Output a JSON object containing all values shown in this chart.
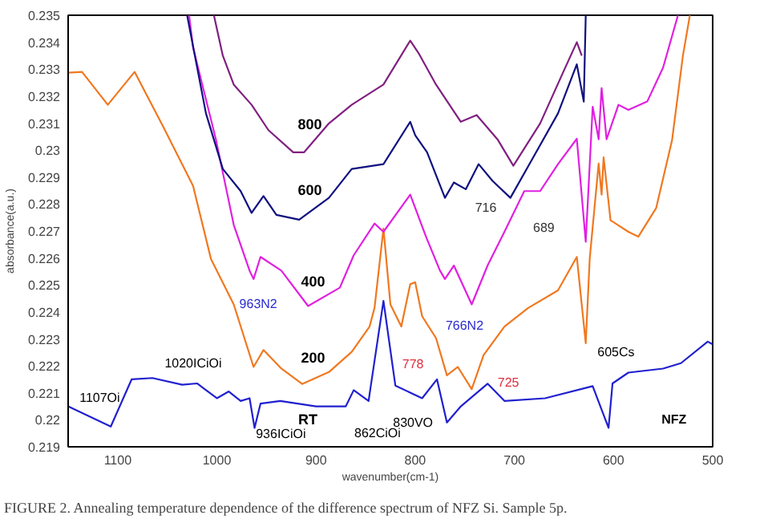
{
  "chart_data": {
    "type": "line",
    "xlabel": "wavenumber(cm-1)",
    "ylabel": "absorbance(a.u.)",
    "xlim": [
      1150,
      500
    ],
    "ylim": [
      0.219,
      0.235
    ],
    "xticks": [
      1100,
      1000,
      900,
      800,
      700,
      600,
      500
    ],
    "yticks": [
      0.219,
      0.22,
      0.221,
      0.222,
      0.223,
      0.224,
      0.225,
      0.226,
      0.227,
      0.228,
      0.229,
      0.23,
      0.231,
      0.232,
      0.233,
      0.234,
      0.235
    ],
    "grid": false,
    "line_style": "solid",
    "series": [
      {
        "name": "RT",
        "color": "#2020d0",
        "x": [
          1150,
          1107,
          1086,
          1065,
          1035,
          1020,
          1000,
          988,
          976,
          967,
          962,
          956,
          936,
          900,
          870,
          862,
          847,
          846,
          832,
          820,
          793,
          778,
          768,
          754,
          727,
          710,
          669,
          621,
          605,
          601,
          585,
          550,
          532,
          505,
          500
        ],
        "values": [
          0.2205,
          0.21975,
          0.2215,
          0.22155,
          0.2213,
          0.22135,
          0.2208,
          0.22105,
          0.2207,
          0.2208,
          0.2197,
          0.2206,
          0.2207,
          0.2205,
          0.2205,
          0.2211,
          0.2207,
          0.22095,
          0.22441,
          0.22127,
          0.2208,
          0.2215,
          0.2199,
          0.2205,
          0.22134,
          0.2207,
          0.2208,
          0.22125,
          0.2197,
          0.22135,
          0.22175,
          0.2219,
          0.2221,
          0.2229,
          0.2228
        ]
      },
      {
        "name": "200",
        "color": "#f07820",
        "x": [
          1150,
          1136,
          1110,
          1083,
          1054,
          1024,
          1006,
          983,
          963,
          953,
          935,
          914,
          887,
          864,
          846,
          841,
          832,
          825,
          814,
          805,
          800,
          793,
          779,
          768,
          757,
          743,
          731,
          710,
          686,
          656,
          637,
          628,
          624,
          615,
          612,
          610,
          603,
          585,
          575,
          557,
          541,
          530,
          523
        ],
        "values": [
          0.23287,
          0.2329,
          0.23168,
          0.2329,
          0.23086,
          0.22867,
          0.22597,
          0.22428,
          0.22196,
          0.22259,
          0.2219,
          0.22133,
          0.22177,
          0.22252,
          0.22346,
          0.22415,
          0.22709,
          0.22428,
          0.22346,
          0.22503,
          0.2251,
          0.22384,
          0.22303,
          0.22165,
          0.22196,
          0.22114,
          0.2224,
          0.22346,
          0.22415,
          0.2248,
          0.22604,
          0.22284,
          0.22597,
          0.2295,
          0.22835,
          0.22973,
          0.2274,
          0.22697,
          0.22679,
          0.22785,
          0.23036,
          0.2335,
          0.235
        ]
      },
      {
        "name": "400",
        "color": "#e020e0",
        "x": [
          1028,
          1024,
          1001,
          983,
          967,
          963,
          956,
          935,
          908,
          876,
          862,
          841,
          832,
          805,
          789,
          775,
          770,
          761,
          743,
          727,
          710,
          690,
          674,
          656,
          637,
          628,
          621,
          615,
          612,
          607,
          595,
          585,
          566,
          550,
          535
        ],
        "values": [
          0.235,
          0.2338,
          0.2304,
          0.22723,
          0.22553,
          0.22522,
          0.22604,
          0.22553,
          0.22422,
          0.2249,
          0.2261,
          0.22728,
          0.22697,
          0.22835,
          0.22678,
          0.22553,
          0.22522,
          0.22572,
          0.22428,
          0.22572,
          0.22697,
          0.22848,
          0.22848,
          0.22948,
          0.23042,
          0.2266,
          0.23161,
          0.2304,
          0.2323,
          0.2304,
          0.23168,
          0.23149,
          0.2318,
          0.23306,
          0.235
        ]
      },
      {
        "name": "600",
        "color": "#101080",
        "x": [
          1030,
          1011,
          994,
          976,
          965,
          953,
          940,
          917,
          887,
          864,
          832,
          805,
          800,
          788,
          770,
          761,
          749,
          736,
          722,
          704,
          681,
          656,
          637,
          630,
          628
        ],
        "values": [
          0.235,
          0.23136,
          0.2293,
          0.22848,
          0.22767,
          0.2283,
          0.2276,
          0.22742,
          0.22823,
          0.2293,
          0.22948,
          0.23105,
          0.23055,
          0.22992,
          0.22823,
          0.2288,
          0.22855,
          0.22948,
          0.22886,
          0.22823,
          0.22973,
          0.23136,
          0.23318,
          0.2318,
          0.235
        ]
      },
      {
        "name": "800",
        "color": "#802080",
        "x": [
          1003,
          994,
          983,
          965,
          948,
          923,
          912,
          887,
          864,
          832,
          805,
          796,
          779,
          754,
          738,
          717,
          701,
          674,
          651,
          637,
          632
        ],
        "values": [
          0.235,
          0.2335,
          0.23243,
          0.23168,
          0.23074,
          0.22992,
          0.22992,
          0.23099,
          0.23168,
          0.23243,
          0.23406,
          0.23356,
          0.23243,
          0.23105,
          0.2313,
          0.2304,
          0.22942,
          0.23099,
          0.23287,
          0.234,
          0.2335
        ]
      }
    ],
    "annotations": [
      "NFZ",
      "1107Oi",
      "1020ICiOi",
      "936ICiOi",
      "862CiOi",
      "830VO",
      "778",
      "725",
      "766N2",
      "963N2",
      "605Cs",
      "716",
      "689",
      "FIGURE 2.  Annealing temperature dependence of the difference spectrum of NFZ Si. Sample 5p."
    ]
  }
}
